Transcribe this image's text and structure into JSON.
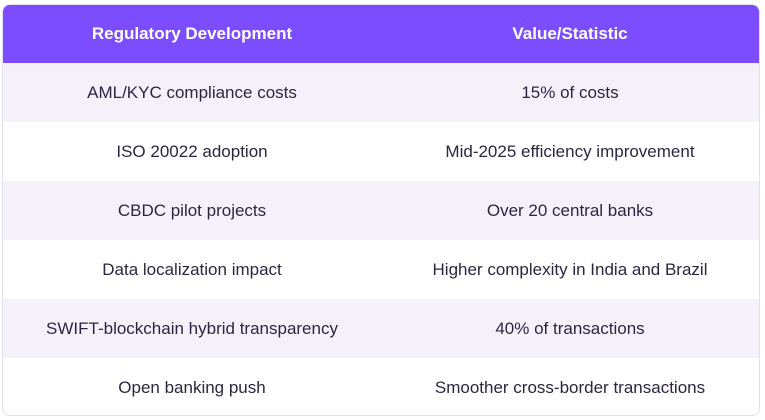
{
  "table": {
    "headers": [
      "Regulatory Development",
      "Value/Statistic"
    ],
    "rows": [
      [
        "AML/KYC compliance costs",
        "15% of costs"
      ],
      [
        "ISO 20022 adoption",
        "Mid-2025 efficiency improvement"
      ],
      [
        "CBDC pilot projects",
        "Over 20 central banks"
      ],
      [
        "Data localization impact",
        "Higher complexity in India and Brazil"
      ],
      [
        "SWIFT-blockchain hybrid transparency",
        "40% of transactions"
      ],
      [
        "Open banking push",
        "Smoother cross-border transactions"
      ]
    ]
  },
  "colors": {
    "header_bg": "#7c4dff",
    "stripe_bg": "#f4f1fb"
  }
}
